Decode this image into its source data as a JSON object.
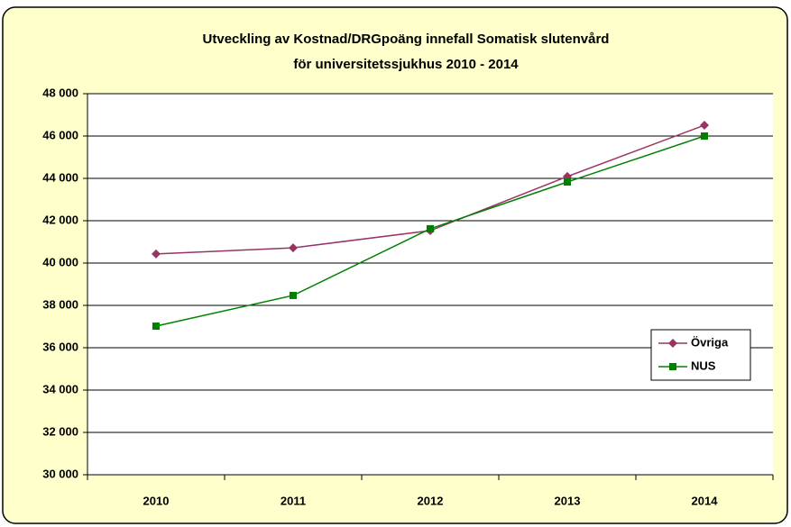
{
  "chart_data": {
    "type": "line",
    "title": [
      "Utveckling av Kostnad/DRGpoäng innefall Somatisk slutenvård",
      "för universitetssjukhus 2010 - 2014"
    ],
    "categories": [
      "2010",
      "2011",
      "2012",
      "2013",
      "2014"
    ],
    "series": [
      {
        "name": "Övriga",
        "color": "#993366",
        "marker": "diamond",
        "values": [
          40430,
          40720,
          41530,
          44090,
          46510
        ]
      },
      {
        "name": "NUS",
        "color": "#008000",
        "marker": "square",
        "values": [
          37020,
          38470,
          41620,
          43830,
          46000
        ]
      }
    ],
    "ylim": [
      30000,
      48000
    ],
    "yticks": [
      {
        "value": 30000,
        "label": "30 000"
      },
      {
        "value": 32000,
        "label": "32 000"
      },
      {
        "value": 34000,
        "label": "34 000"
      },
      {
        "value": 36000,
        "label": "36 000"
      },
      {
        "value": 38000,
        "label": "38 000"
      },
      {
        "value": 40000,
        "label": "40 000"
      },
      {
        "value": 42000,
        "label": "42 000"
      },
      {
        "value": 44000,
        "label": "44 000"
      },
      {
        "value": 46000,
        "label": "46 000"
      },
      {
        "value": 48000,
        "label": "48 000"
      }
    ],
    "grid": true,
    "legend": "right"
  }
}
